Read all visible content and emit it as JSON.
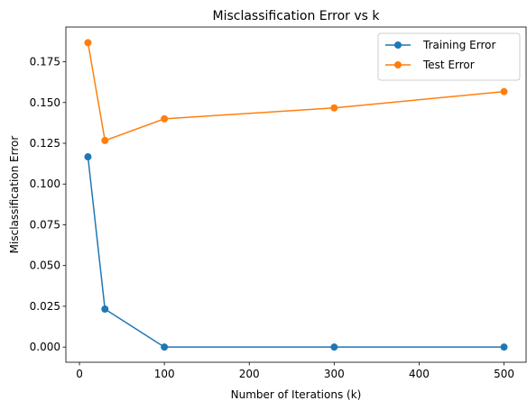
{
  "chart_data": {
    "type": "line",
    "title": "Misclassification Error vs k",
    "xlabel": "Number of Iterations (k)",
    "ylabel": "Misclassification Error",
    "x": [
      10,
      30,
      100,
      300,
      500
    ],
    "xlim": [
      -16,
      526
    ],
    "ylim": [
      -0.0093,
      0.1963
    ],
    "xticks": [
      "0",
      "100",
      "200",
      "300",
      "400",
      "500"
    ],
    "yticks": [
      "0.000",
      "0.025",
      "0.050",
      "0.075",
      "0.100",
      "0.125",
      "0.150",
      "0.175"
    ],
    "grid": false,
    "legend_position": "top-right",
    "series": [
      {
        "name": "Training Error",
        "color": "#1f77b4",
        "values": [
          0.1167,
          0.0233,
          0.0,
          0.0,
          0.0
        ]
      },
      {
        "name": "Test Error",
        "color": "#ff7f0e",
        "values": [
          0.1867,
          0.1267,
          0.14,
          0.1467,
          0.1567
        ]
      }
    ]
  }
}
